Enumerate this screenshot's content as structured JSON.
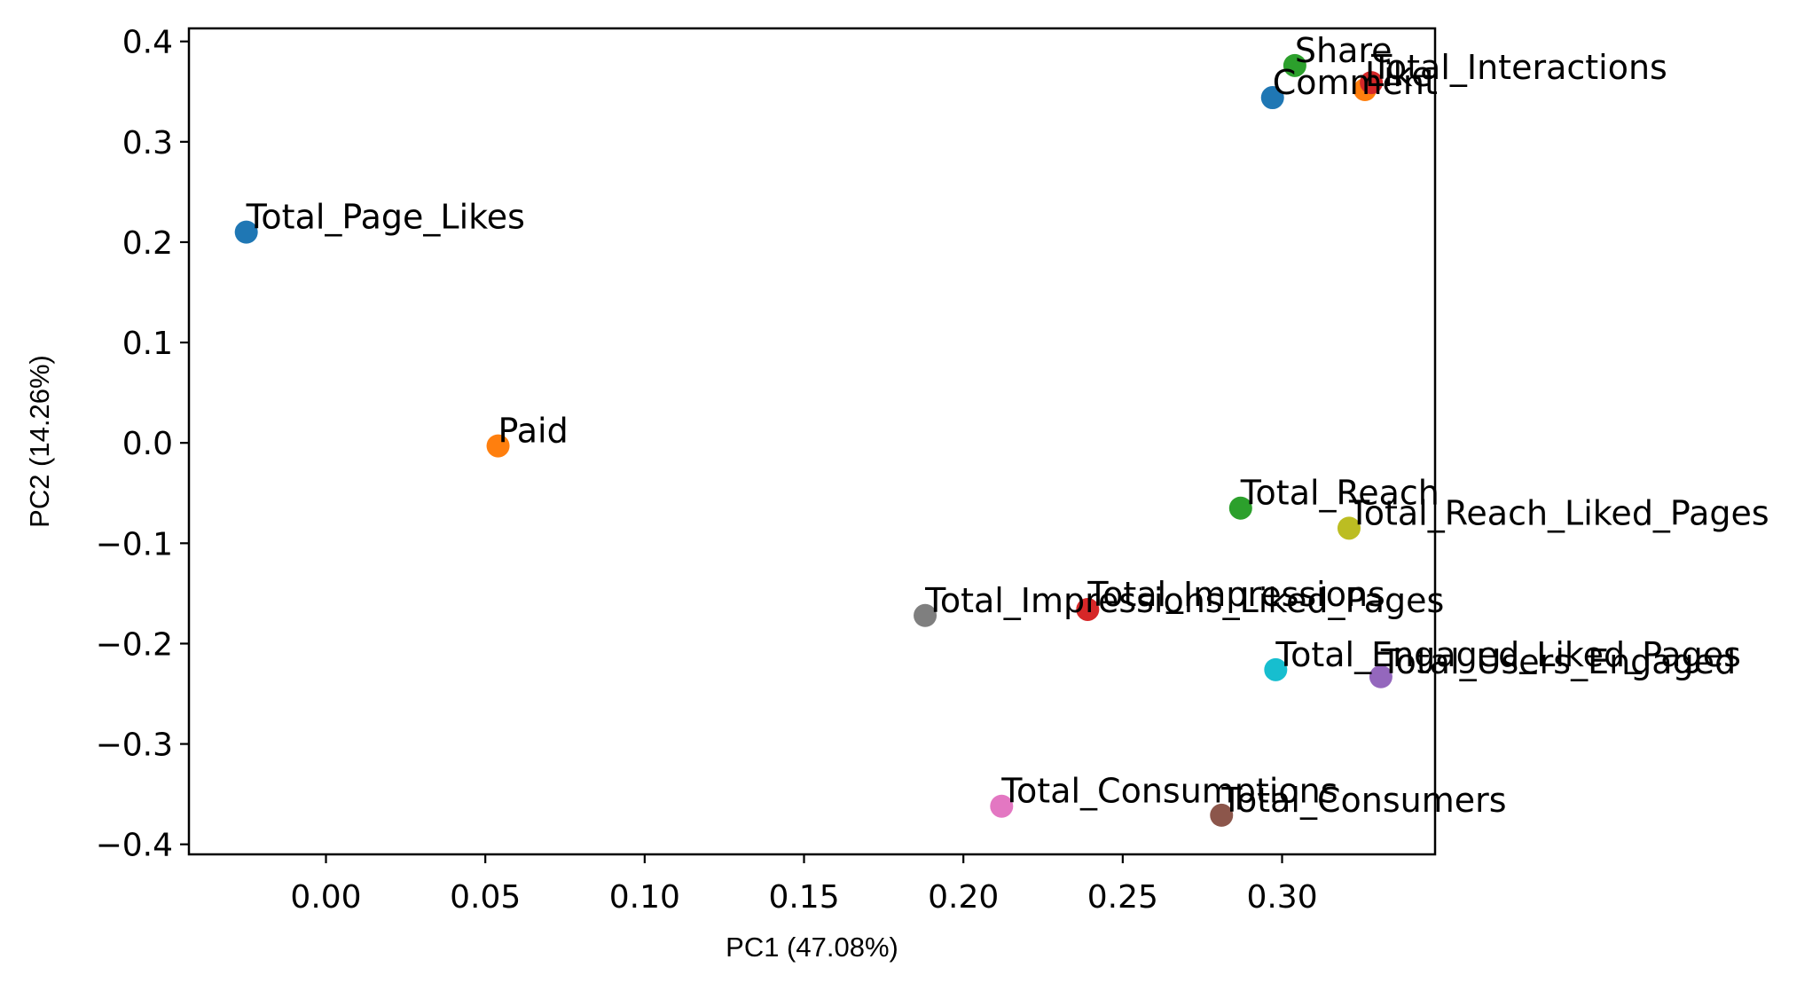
{
  "chart_data": {
    "type": "scatter",
    "title": "",
    "xlabel": "PC1 (47.08%)",
    "ylabel": "PC2 (14.26%)",
    "xlim": [
      -0.043,
      0.348
    ],
    "ylim": [
      -0.41,
      0.413
    ],
    "grid": false,
    "legend": "none",
    "xticks": [
      {
        "value": 0.0,
        "label": "0.00"
      },
      {
        "value": 0.05,
        "label": "0.05"
      },
      {
        "value": 0.1,
        "label": "0.10"
      },
      {
        "value": 0.15,
        "label": "0.15"
      },
      {
        "value": 0.2,
        "label": "0.20"
      },
      {
        "value": 0.25,
        "label": "0.25"
      },
      {
        "value": 0.3,
        "label": "0.30"
      }
    ],
    "yticks": [
      {
        "value": 0.4,
        "label": "0.4"
      },
      {
        "value": 0.3,
        "label": "0.3"
      },
      {
        "value": 0.2,
        "label": "0.2"
      },
      {
        "value": 0.1,
        "label": "0.1"
      },
      {
        "value": 0.0,
        "label": "0.0"
      },
      {
        "value": -0.1,
        "label": "−0.1"
      },
      {
        "value": -0.2,
        "label": "−0.2"
      },
      {
        "value": -0.3,
        "label": "−0.3"
      },
      {
        "value": -0.4,
        "label": "−0.4"
      }
    ],
    "points": [
      {
        "label": "Total_Page_Likes",
        "x": -0.025,
        "y": 0.21,
        "color": "#1f77b4"
      },
      {
        "label": "Paid",
        "x": 0.054,
        "y": -0.003,
        "color": "#ff7f0e"
      },
      {
        "label": "Total_Reach",
        "x": 0.287,
        "y": -0.065,
        "color": "#2ca02c"
      },
      {
        "label": "Total_Impressions",
        "x": 0.239,
        "y": -0.166,
        "color": "#d62728"
      },
      {
        "label": "Total_Users_Engaged",
        "x": 0.331,
        "y": -0.233,
        "color": "#9467bd"
      },
      {
        "label": "Total_Consumers",
        "x": 0.281,
        "y": -0.371,
        "color": "#8c564b"
      },
      {
        "label": "Total_Consumptions",
        "x": 0.212,
        "y": -0.362,
        "color": "#e377c2"
      },
      {
        "label": "Total_Impressions_Liked_Pages",
        "x": 0.188,
        "y": -0.172,
        "color": "#7f7f7f"
      },
      {
        "label": "Total_Reach_Liked_Pages",
        "x": 0.321,
        "y": -0.085,
        "color": "#bcbd22"
      },
      {
        "label": "Total_Engaged_Liked_Pages",
        "x": 0.298,
        "y": -0.226,
        "color": "#17becf"
      },
      {
        "label": "Comment",
        "x": 0.297,
        "y": 0.344,
        "color": "#1f77b4"
      },
      {
        "label": "Like",
        "x": 0.326,
        "y": 0.352,
        "color": "#ff7f0e"
      },
      {
        "label": "Share",
        "x": 0.304,
        "y": 0.376,
        "color": "#2ca02c"
      },
      {
        "label": "Total_Interactions",
        "x": 0.328,
        "y": 0.359,
        "color": "#d62728"
      }
    ]
  }
}
